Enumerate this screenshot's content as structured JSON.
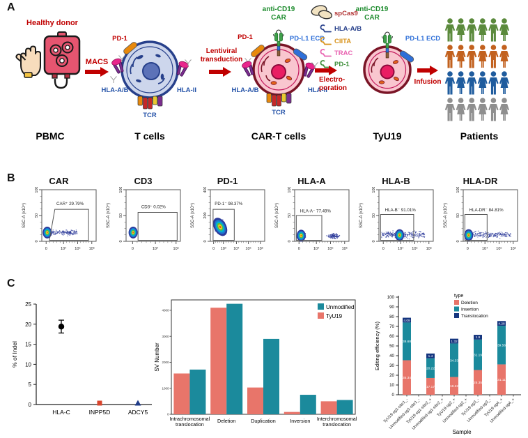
{
  "figure": {
    "panelA": {
      "label": "A",
      "donor_label": "Healthy donor",
      "arrows": {
        "macs": "MACS",
        "lentiviral": [
          "Lentiviral",
          "transduction"
        ],
        "electroporation": [
          "Electro-",
          "poration"
        ],
        "infusion": "Infusion"
      },
      "stage_labels": [
        "PBMC",
        "T cells",
        "CAR-T cells",
        "TyU19",
        "Patients"
      ],
      "tcell": {
        "pd1": "PD-1",
        "hla_ab": "HLA-A/B",
        "tcr": "TCR",
        "hla_ii": "HLA-II"
      },
      "cart": {
        "pd1": "PD-1",
        "car_line1": "anti-CD19",
        "car_line2": "CAR",
        "pdl1": "PD-L1 ECD",
        "hla_ab": "HLA-A/B",
        "hla_ii": "HLA-II",
        "tcr": "TCR"
      },
      "tyu19": {
        "car_line1": "anti-CD19",
        "car_line2": "CAR",
        "pdl1": "PD-L1 ECD"
      },
      "cargo_legend": [
        {
          "label": "spCas9",
          "color": "#b03030",
          "icon": "protein-blob"
        },
        {
          "label": "HLA-A/B",
          "color": "#27408b",
          "icon": "sgRNA"
        },
        {
          "label": "CIITA",
          "color": "#d8921a",
          "icon": "sgRNA"
        },
        {
          "label": "TRAC",
          "color": "#e862b0",
          "icon": "sgRNA"
        },
        {
          "label": "PD-1",
          "color": "#3f8f3b",
          "icon": "sgRNA"
        }
      ],
      "patient_row_colors": [
        "#5b8a3c",
        "#c2611e",
        "#1f5c9e",
        "#8f8f8f"
      ]
    },
    "panelB": {
      "label": "B",
      "y_axis_label": "SSC-A (x10⁴)",
      "plots": [
        {
          "title": "CAR",
          "gate_label": "CAR⁺ 29.79%",
          "y_ticks": [
            "0",
            "50",
            "100"
          ],
          "x_ticks": [
            "0",
            "10⁴",
            "10⁵",
            "10⁶"
          ]
        },
        {
          "title": "CD3",
          "gate_label": "CD3⁺ 0.02%",
          "y_ticks": [
            "0",
            "50",
            "100"
          ],
          "x_ticks": [
            "0",
            "10⁴",
            "10⁵"
          ]
        },
        {
          "title": "PD-1",
          "gate_label": "PD-1⁻ 98.37%",
          "y_ticks": [
            "0",
            "200",
            "400"
          ],
          "x_ticks": [
            "0",
            "10³",
            "10⁴",
            "10⁵",
            "10⁶"
          ]
        },
        {
          "title": "HLA-A",
          "gate_label": "HLA-A⁻ 77.49%",
          "y_ticks": [
            "0",
            "50",
            "100"
          ],
          "x_ticks": [
            "0",
            "10⁴",
            "10⁵",
            "10⁶"
          ]
        },
        {
          "title": "HLA-B",
          "gate_label": "HLA-B⁻ 91.01%",
          "y_ticks": [
            "0",
            "50",
            "100"
          ],
          "x_ticks": [
            "0",
            "10⁴",
            "10⁵",
            "10⁶"
          ]
        },
        {
          "title": "HLA-DR",
          "gate_label": "HLA-DR⁻ 84.81%",
          "y_ticks": [
            "0",
            "50",
            "100"
          ],
          "x_ticks": [
            "0",
            "10⁴",
            "10⁵",
            "10⁶"
          ]
        }
      ]
    },
    "panelC": {
      "label": "C"
    }
  },
  "chart_data": [
    {
      "type": "scatter",
      "name": "indel-frequency",
      "ylabel": "% of Indel",
      "ylim": [
        0,
        25
      ],
      "yticks": [
        0,
        5,
        10,
        15,
        20,
        25
      ],
      "categories": [
        "HLA-C",
        "INPP5D",
        "ADCY5"
      ],
      "points": [
        {
          "label": "HLA-C",
          "value": 19.4,
          "error": 1.6,
          "marker": "circle",
          "color": "#000000"
        },
        {
          "label": "INPP5D",
          "value": 0.35,
          "error": 0,
          "marker": "square",
          "color": "#d9442c"
        },
        {
          "label": "ADCY5",
          "value": 0.35,
          "error": 0,
          "marker": "triangle",
          "color": "#1f3c88"
        }
      ]
    },
    {
      "type": "bar",
      "name": "sv-number",
      "ylabel": "SV Number",
      "ylim": [
        0,
        4400
      ],
      "yticks": [
        0,
        1000,
        2000,
        3000,
        4000
      ],
      "categories": [
        "Intrachromosomal translocation",
        "Deletion",
        "Duplication",
        "Inversion",
        "Interchromosomal translocation"
      ],
      "series": [
        {
          "name": "TyU19",
          "color": "#e8756a",
          "values": [
            1570,
            4100,
            1030,
            90,
            500
          ]
        },
        {
          "name": "Unmodified",
          "color": "#1b8a9c",
          "values": [
            1720,
            4250,
            2900,
            750,
            550
          ]
        }
      ],
      "legend_order": [
        "Unmodified",
        "TyU19"
      ],
      "legend_position": "top-right"
    },
    {
      "type": "bar",
      "name": "editing-efficiency",
      "stacked": true,
      "ylabel": "Editing efficiency (%)",
      "xlabel": "Sample",
      "ylim": [
        0,
        100
      ],
      "yticks": [
        0,
        10,
        20,
        30,
        40,
        50,
        60,
        70,
        80,
        90,
        100
      ],
      "legend_title": "type",
      "categories": [
        "TyU19-sg1-site1_-",
        "Unmodified-sg1-site1_-",
        "TyU19-sg1-site2_+",
        "Unmodified-sg1-site2_+",
        "TyU19-sg2_+",
        "Unmodified-sg2_+",
        "TyU19-sg3_-",
        "Unmodified-sg3_-",
        "TyU19-sg4_+",
        "Unmodified-sg4_+"
      ],
      "series": [
        {
          "name": "Deletion",
          "color": "#e8756a",
          "values": [
            35.34,
            0,
            17.17,
            0,
            18.22,
            0,
            25.35,
            0,
            31.11,
            0
          ]
        },
        {
          "name": "Insertion",
          "color": "#1b8a9c",
          "values": [
            38.68,
            0,
            20.22,
            0,
            34.33,
            0,
            31.19,
            0,
            39.56,
            0
          ]
        },
        {
          "name": "Translocation",
          "color": "#16367f",
          "values": [
            4.09,
            0,
            1.4,
            0,
            1.32,
            0,
            1.9,
            0,
            4.28,
            0
          ]
        }
      ]
    }
  ]
}
